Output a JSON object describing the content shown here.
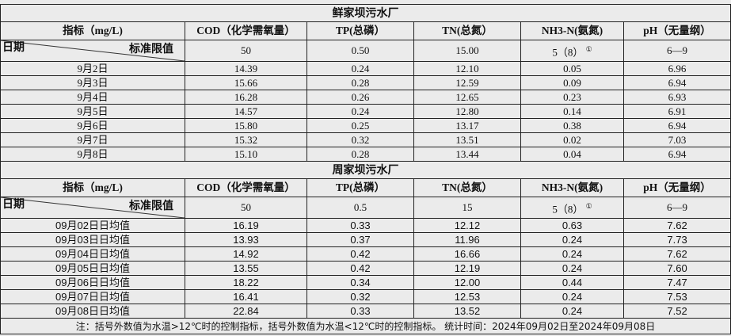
{
  "plants": [
    {
      "name": "鲜家坝污水厂",
      "headers": [
        "指标（mg/L)",
        "COD（化学需氧量）",
        "TP(总磷）",
        "TN(总氮）",
        "NH3-N(氨氮)",
        "pH（无量纲）"
      ],
      "date_label": "日期",
      "standard_label": "标准限值",
      "standards": [
        "50",
        "0.50",
        "15.00",
        "5（8）",
        "6—9"
      ],
      "rows": [
        [
          "9月2日",
          "14.39",
          "0.24",
          "12.10",
          "0.05",
          "6.96"
        ],
        [
          "9月3日",
          "15.66",
          "0.28",
          "12.59",
          "0.09",
          "6.94"
        ],
        [
          "9月4日",
          "16.28",
          "0.26",
          "12.65",
          "0.23",
          "6.93"
        ],
        [
          "9月5日",
          "14.57",
          "0.24",
          "12.80",
          "0.14",
          "6.91"
        ],
        [
          "9月6日",
          "15.80",
          "0.25",
          "13.17",
          "0.38",
          "6.94"
        ],
        [
          "9月7日",
          "15.32",
          "0.32",
          "13.51",
          "0.02",
          "7.03"
        ],
        [
          "9月8日",
          "15.10",
          "0.28",
          "13.44",
          "0.04",
          "6.94"
        ]
      ]
    },
    {
      "name": "周家坝污水厂",
      "headers": [
        "指标（mg/L)",
        "COD（化学需氧量）",
        "TP(总磷）",
        "TN(总氮）",
        "NH3-N(氨氮)",
        "pH（无量纲）"
      ],
      "date_label": "日期",
      "standard_label": "标准限值",
      "standards": [
        "50",
        "0.5",
        "15",
        "5（8）",
        "6—9"
      ],
      "rows": [
        [
          "09月02日日均值",
          "16.19",
          "0.33",
          "12.12",
          "0.63",
          "7.62"
        ],
        [
          "09月03日日均值",
          "13.93",
          "0.37",
          "11.96",
          "0.24",
          "7.73"
        ],
        [
          "09月04日日均值",
          "14.92",
          "0.42",
          "16.66",
          "0.24",
          "7.62"
        ],
        [
          "09月05日日均值",
          "13.55",
          "0.42",
          "12.19",
          "0.24",
          "7.60"
        ],
        [
          "09月06日日均值",
          "18.22",
          "0.34",
          "12.00",
          "0.44",
          "7.47"
        ],
        [
          "09月07日日均值",
          "16.41",
          "0.32",
          "12.53",
          "0.24",
          "7.53"
        ],
        [
          "09月08日日均值",
          "22.84",
          "0.33",
          "13.52",
          "0.24",
          "7.52"
        ]
      ]
    }
  ],
  "footnote_marker": "①",
  "note": "注：括号外数值为水温>12℃时的控制指标，括号外数值为水温<12℃时的控制指标。  统计时间：2024年09月02日至2024年09月08日"
}
